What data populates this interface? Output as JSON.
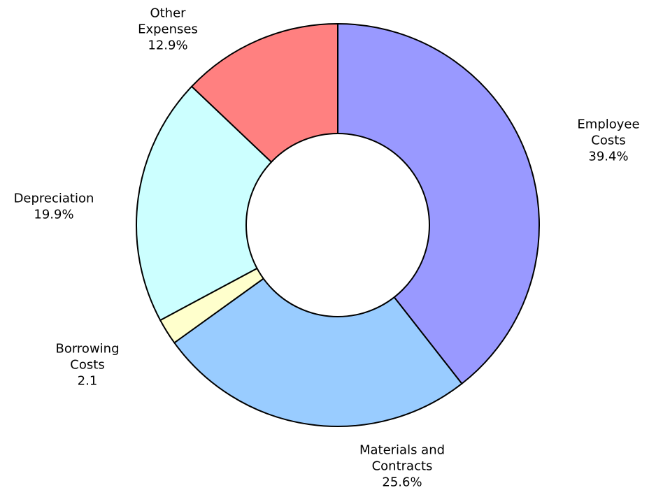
{
  "chart_data": {
    "type": "pie",
    "variant": "donut",
    "start_angle_deg": 0,
    "direction": "clockwise",
    "slices": [
      {
        "name": "Employee Costs",
        "value": 39.4,
        "label_lines": [
          "Employee",
          "Costs",
          "39.4%"
        ],
        "color": "#9999ff"
      },
      {
        "name": "Materials and Contracts",
        "value": 25.6,
        "label_lines": [
          "Materials and",
          "Contracts",
          "25.6%"
        ],
        "color": "#99ccff"
      },
      {
        "name": "Borrowing Costs",
        "value": 2.1,
        "label_lines": [
          "Borrowing",
          "Costs",
          "2.1"
        ],
        "color": "#ffffcc"
      },
      {
        "name": "Depreciation",
        "value": 19.9,
        "label_lines": [
          "Depreciation",
          "19.9%"
        ],
        "color": "#ccffff"
      },
      {
        "name": "Other Expenses",
        "value": 12.9,
        "label_lines": [
          "Other",
          "Expenses",
          "12.9%"
        ],
        "color": "#ff8080"
      }
    ]
  }
}
